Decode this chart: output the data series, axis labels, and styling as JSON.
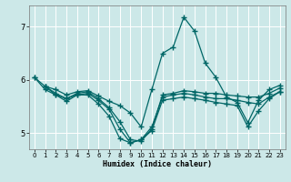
{
  "xlabel": "Humidex (Indice chaleur)",
  "xlim": [
    -0.5,
    23.5
  ],
  "ylim": [
    4.7,
    7.4
  ],
  "yticks": [
    5,
    6,
    7
  ],
  "xticks": [
    0,
    1,
    2,
    3,
    4,
    5,
    6,
    7,
    8,
    9,
    10,
    11,
    12,
    13,
    14,
    15,
    16,
    17,
    18,
    19,
    20,
    21,
    22,
    23
  ],
  "bg_color": "#cce8e8",
  "grid_color": "#ffffff",
  "line_color": "#006666",
  "lines": [
    {
      "x": [
        0,
        1,
        2,
        3,
        4,
        5,
        6,
        7,
        8,
        9,
        10,
        11,
        12,
        13,
        14,
        15,
        16,
        17,
        18,
        19,
        20,
        21,
        22,
        23
      ],
      "y": [
        6.05,
        5.88,
        5.82,
        5.72,
        5.78,
        5.8,
        5.7,
        5.6,
        5.52,
        5.38,
        5.12,
        5.82,
        6.5,
        6.62,
        7.18,
        6.92,
        6.32,
        6.05,
        5.68,
        5.58,
        5.2,
        5.62,
        5.82,
        5.9
      ]
    },
    {
      "x": [
        0,
        1,
        2,
        3,
        4,
        5,
        6,
        7,
        8,
        9,
        10,
        11,
        12,
        13,
        14,
        15,
        16,
        17,
        18,
        19,
        20,
        21,
        22,
        23
      ],
      "y": [
        6.05,
        5.82,
        5.72,
        5.65,
        5.75,
        5.78,
        5.65,
        5.48,
        5.22,
        4.88,
        4.85,
        5.08,
        5.72,
        5.75,
        5.8,
        5.78,
        5.75,
        5.75,
        5.72,
        5.7,
        5.68,
        5.68,
        5.75,
        5.85
      ]
    },
    {
      "x": [
        1,
        2,
        3,
        4,
        5,
        6,
        7,
        8,
        9,
        10,
        11,
        12,
        13,
        14,
        15,
        16,
        17,
        18,
        19,
        20,
        21,
        22,
        23
      ],
      "y": [
        5.88,
        5.75,
        5.65,
        5.72,
        5.75,
        5.62,
        5.45,
        5.08,
        4.82,
        4.88,
        5.12,
        5.68,
        5.72,
        5.75,
        5.72,
        5.68,
        5.65,
        5.65,
        5.62,
        5.58,
        5.55,
        5.68,
        5.78
      ]
    },
    {
      "x": [
        1,
        2,
        3,
        4,
        5,
        6,
        7,
        8,
        9,
        10,
        11,
        12,
        13,
        14,
        15,
        16,
        17,
        18,
        19,
        20,
        21,
        22,
        23
      ],
      "y": [
        5.88,
        5.72,
        5.6,
        5.72,
        5.72,
        5.55,
        5.32,
        4.9,
        4.82,
        4.88,
        5.05,
        5.62,
        5.65,
        5.68,
        5.65,
        5.62,
        5.58,
        5.55,
        5.52,
        5.12,
        5.42,
        5.65,
        5.78
      ]
    }
  ]
}
